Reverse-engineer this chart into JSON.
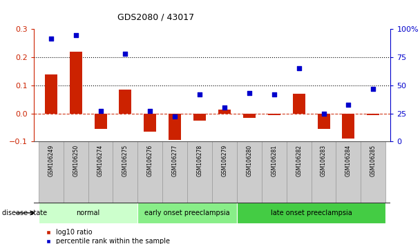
{
  "title": "GDS2080 / 43017",
  "samples": [
    "GSM106249",
    "GSM106250",
    "GSM106274",
    "GSM106275",
    "GSM106276",
    "GSM106277",
    "GSM106278",
    "GSM106279",
    "GSM106280",
    "GSM106281",
    "GSM106282",
    "GSM106283",
    "GSM106284",
    "GSM106285"
  ],
  "log10_ratio": [
    0.14,
    0.22,
    -0.055,
    0.085,
    -0.065,
    -0.095,
    -0.025,
    0.015,
    -0.015,
    -0.005,
    0.07,
    -0.055,
    -0.09,
    -0.005
  ],
  "percentile_rank": [
    92,
    95,
    27,
    78,
    27,
    22,
    42,
    30,
    43,
    42,
    65,
    25,
    33,
    47
  ],
  "bar_color": "#cc2200",
  "dot_color": "#0000cc",
  "ylim_left": [
    -0.1,
    0.3
  ],
  "ylim_right": [
    0,
    100
  ],
  "yticks_left": [
    -0.1,
    0.0,
    0.1,
    0.2,
    0.3
  ],
  "yticks_right": [
    0,
    25,
    50,
    75,
    100
  ],
  "disease_groups": [
    {
      "label": "normal",
      "start": 0,
      "end": 3,
      "color": "#ccffcc"
    },
    {
      "label": "early onset preeclampsia",
      "start": 4,
      "end": 7,
      "color": "#88ee88"
    },
    {
      "label": "late onset preeclampsia",
      "start": 8,
      "end": 13,
      "color": "#44cc44"
    }
  ],
  "legend_log10": "log10 ratio",
  "legend_percentile": "percentile rank within the sample",
  "disease_state_label": "disease state",
  "bar_width": 0.5,
  "tick_bg_color": "#cccccc",
  "tick_border_color": "#999999",
  "dotted_line_vals": [
    0.1,
    0.2
  ],
  "dashed_line_val": 0.0
}
